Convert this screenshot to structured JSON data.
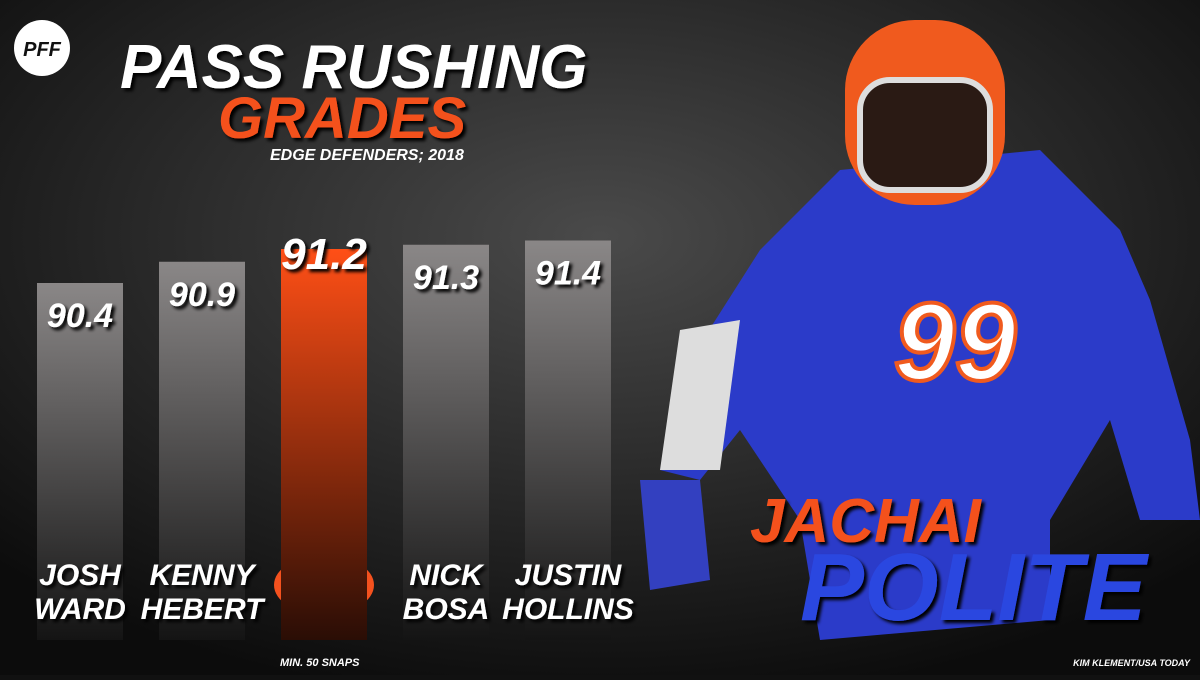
{
  "brand": "PFF",
  "chart_data": {
    "type": "bar",
    "title": "PASS RUSHING",
    "title_line2": "GRADES",
    "subtitle": "EDGE DEFENDERS; 2018",
    "categories": [
      [
        "JOSH",
        "WARD"
      ],
      [
        "KENNY",
        "HEBERT"
      ],
      null,
      [
        "NICK",
        "BOSA"
      ],
      [
        "JUSTIN",
        "HOLLINS"
      ]
    ],
    "values": [
      90.4,
      90.9,
      91.2,
      91.3,
      91.4
    ],
    "colors": [
      "#5a5656",
      "#5a5656",
      "#f4511e",
      "#5a5656",
      "#5a5656"
    ],
    "ylim": [
      82,
      92
    ],
    "note": "MIN. 50 SNAPS"
  },
  "player": {
    "first_name": "JACHAI",
    "last_name": "POLITE",
    "number": "99"
  },
  "credit": "KIM KLEMENT/USA TODAY"
}
